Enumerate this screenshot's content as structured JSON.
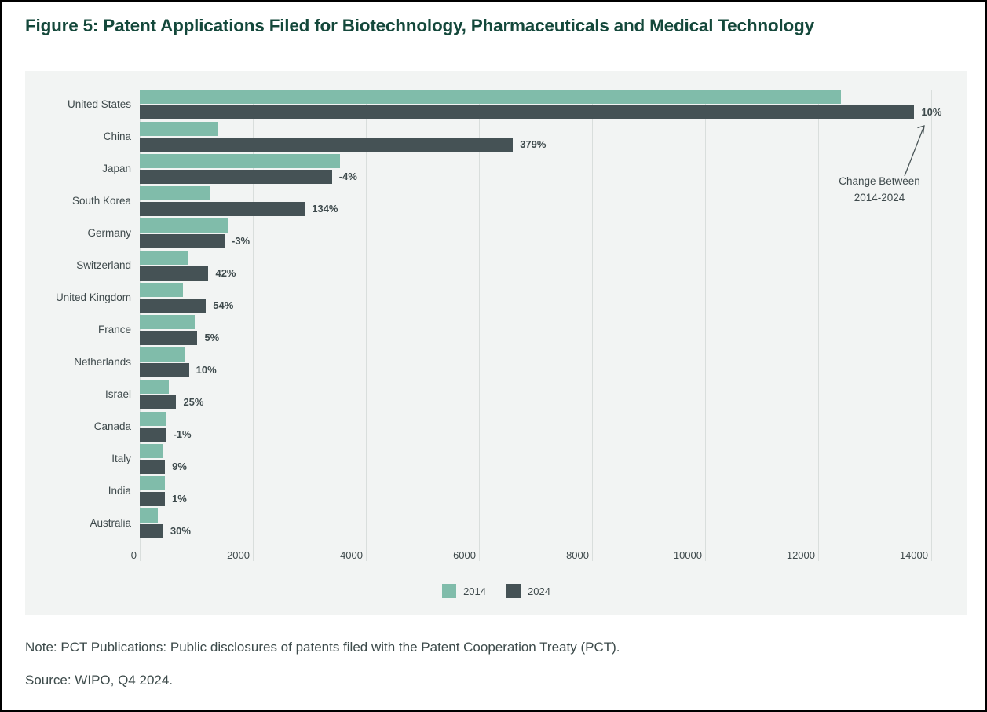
{
  "title": "Figure 5: Patent Applications Filed for Biotechnology, Pharmaceuticals and Medical Technology",
  "note": "Note: PCT Publications: Public disclosures of patents filed with the Patent Cooperation Treaty (PCT).",
  "source": "Source: WIPO, Q4 2024.",
  "annotation": {
    "line1": "Change Between",
    "line2": "2014-2024"
  },
  "legend": [
    {
      "label": "2014",
      "color": "#80BCAA"
    },
    {
      "label": "2024",
      "color": "#455255"
    }
  ],
  "colors": {
    "series_2014": "#80BCAA",
    "series_2024": "#455255",
    "panel_background": "#F2F4F3",
    "gridline": "#D9DEDC",
    "title_text": "#14483B",
    "body_text": "#3C4A4A"
  },
  "chart_data": {
    "type": "bar",
    "orientation": "horizontal",
    "title": "Patent Applications Filed for Biotechnology, Pharmaceuticals and Medical Technology",
    "xlabel": "",
    "ylabel": "",
    "xlim": [
      0,
      14000
    ],
    "xticks": [
      0,
      2000,
      4000,
      6000,
      8000,
      10000,
      12000,
      14000
    ],
    "grid": "vertical",
    "legend_position": "bottom",
    "categories": [
      "United States",
      "China",
      "Japan",
      "South Korea",
      "Germany",
      "Switzerland",
      "United Kingdom",
      "France",
      "Netherlands",
      "Israel",
      "Canada",
      "Italy",
      "India",
      "Australia"
    ],
    "series": [
      {
        "name": "2014",
        "values": [
          12400,
          1380,
          3540,
          1250,
          1550,
          855,
          760,
          970,
          790,
          515,
          470,
          410,
          440,
          320
        ]
      },
      {
        "name": "2024",
        "values": [
          13700,
          6600,
          3400,
          2920,
          1500,
          1215,
          1170,
          1020,
          870,
          645,
          465,
          447,
          445,
          415
        ]
      }
    ],
    "change_labels": [
      "10%",
      "379%",
      "-4%",
      "134%",
      "-3%",
      "42%",
      "54%",
      "5%",
      "10%",
      "25%",
      "-1%",
      "9%",
      "1%",
      "30%"
    ],
    "annotation": "Change Between 2014-2024 (arrow points to United States 2024 change label)"
  }
}
